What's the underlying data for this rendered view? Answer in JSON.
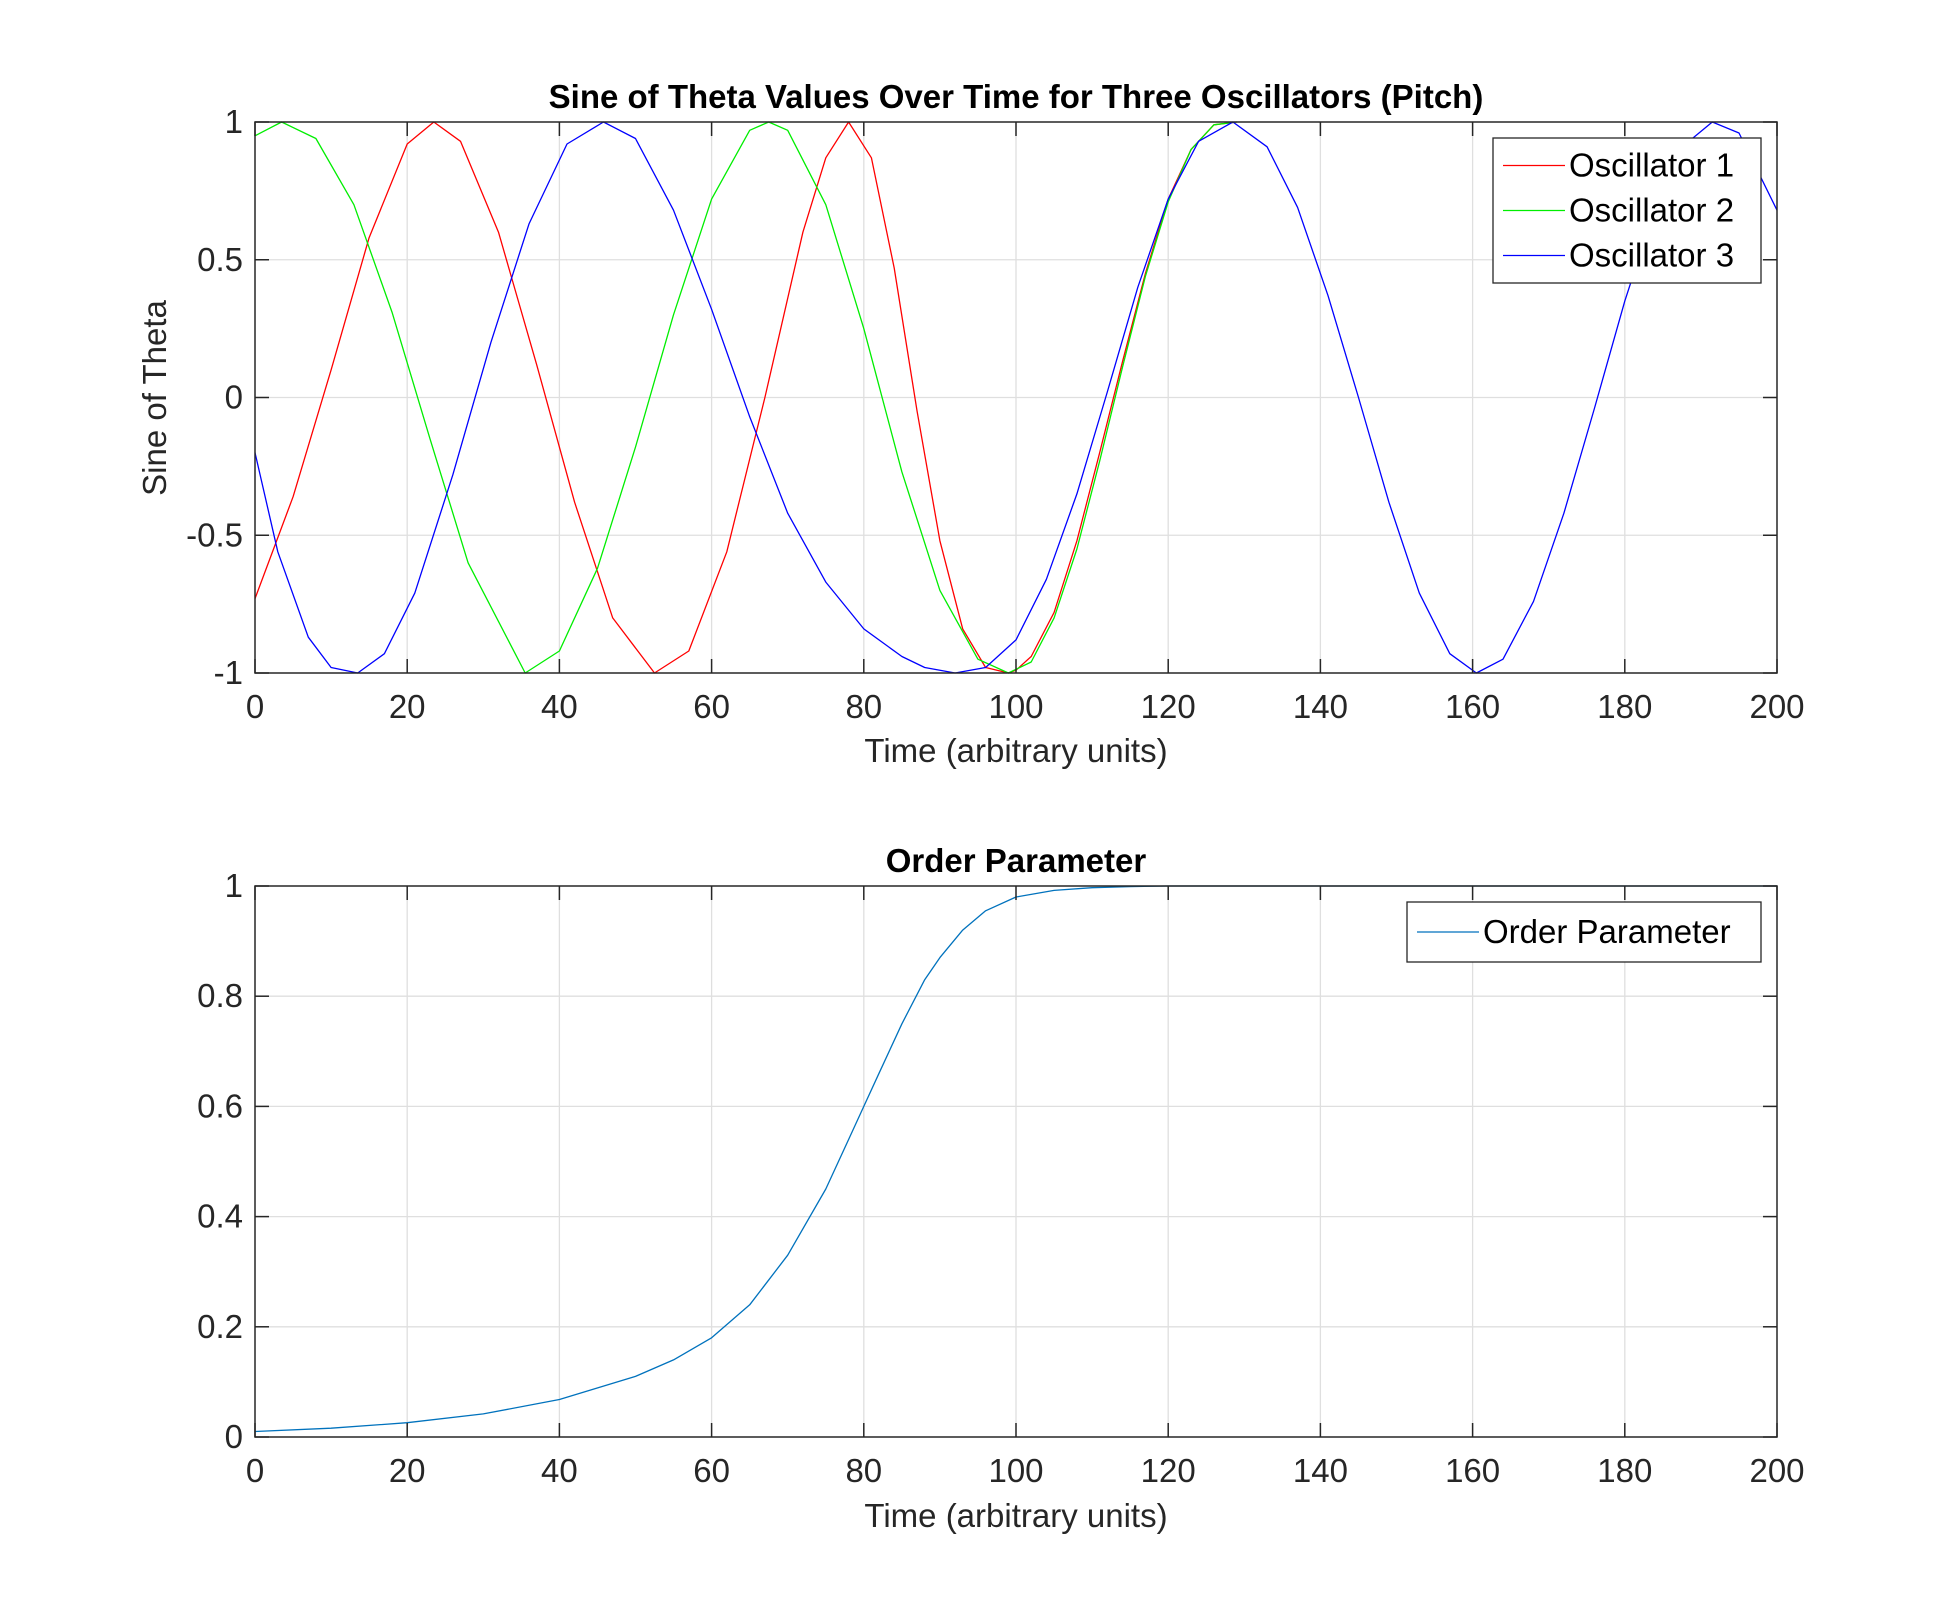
{
  "chart_data": [
    {
      "type": "line",
      "title": "Sine of Theta Values Over Time for Three Oscillators (Pitch)",
      "xlabel": "Time (arbitrary units)",
      "ylabel": "Sine of Theta",
      "xlim": [
        0,
        200
      ],
      "ylim": [
        -1,
        1
      ],
      "xticks": [
        "0",
        "20",
        "40",
        "60",
        "80",
        "100",
        "120",
        "140",
        "160",
        "180",
        "200"
      ],
      "yticks": [
        "-1",
        "-0.5",
        "0",
        "0.5",
        "1"
      ],
      "grid": true,
      "legend_position": "top-right",
      "series": [
        {
          "name": "Oscillator 1",
          "color": "#ff0000",
          "x": [
            0,
            5,
            10,
            15,
            20,
            23.5,
            27,
            32,
            37,
            42,
            47,
            52.5,
            57,
            62,
            67,
            72,
            75,
            78,
            81,
            84,
            87,
            90,
            93,
            96,
            99,
            100,
            102,
            105,
            108,
            111,
            114,
            117,
            120,
            123,
            126,
            129
          ],
          "y": [
            -0.73,
            -0.36,
            0.1,
            0.58,
            0.92,
            1.0,
            0.93,
            0.6,
            0.12,
            -0.38,
            -0.8,
            -1.0,
            -0.92,
            -0.56,
            0.0,
            0.6,
            0.87,
            1.0,
            0.87,
            0.47,
            -0.05,
            -0.52,
            -0.84,
            -0.98,
            -1.0,
            -0.99,
            -0.94,
            -0.78,
            -0.52,
            -0.2,
            0.13,
            0.45,
            0.72,
            0.9,
            0.99,
            1.0
          ]
        },
        {
          "name": "Oscillator 2",
          "color": "#00ee00",
          "x": [
            0,
            3.5,
            8,
            13,
            18,
            23,
            28,
            35.5,
            40,
            45,
            50,
            55,
            60,
            65,
            67.5,
            70,
            75,
            80,
            85,
            90,
            95,
            99,
            102,
            105,
            108,
            111,
            114,
            117,
            120,
            123,
            126,
            129
          ],
          "y": [
            0.95,
            1.0,
            0.94,
            0.7,
            0.31,
            -0.15,
            -0.6,
            -1.0,
            -0.92,
            -0.62,
            -0.18,
            0.3,
            0.72,
            0.97,
            1.0,
            0.97,
            0.7,
            0.25,
            -0.27,
            -0.7,
            -0.95,
            -1.0,
            -0.96,
            -0.8,
            -0.55,
            -0.23,
            0.11,
            0.44,
            0.71,
            0.9,
            0.99,
            1.0
          ]
        },
        {
          "name": "Oscillator 3",
          "color": "#0000ff",
          "x": [
            0,
            3,
            7,
            10,
            13.5,
            17,
            21,
            26,
            31,
            36,
            41,
            45.8,
            50,
            55,
            60,
            65,
            70,
            75,
            80,
            85,
            88,
            92,
            96,
            100,
            104,
            108,
            112,
            116,
            120,
            124,
            128.5,
            133,
            137,
            141,
            145,
            149,
            153,
            157,
            160.5,
            164,
            168,
            172,
            176,
            180,
            184,
            188,
            191.5,
            195,
            200
          ],
          "y": [
            -0.2,
            -0.56,
            -0.87,
            -0.98,
            -1.0,
            -0.93,
            -0.71,
            -0.28,
            0.2,
            0.63,
            0.92,
            1.0,
            0.94,
            0.68,
            0.32,
            -0.07,
            -0.42,
            -0.67,
            -0.84,
            -0.94,
            -0.98,
            -1.0,
            -0.98,
            -0.88,
            -0.66,
            -0.35,
            0.02,
            0.4,
            0.72,
            0.93,
            1.0,
            0.91,
            0.69,
            0.37,
            0.0,
            -0.38,
            -0.71,
            -0.93,
            -1.0,
            -0.95,
            -0.74,
            -0.42,
            -0.04,
            0.35,
            0.69,
            0.92,
            1.0,
            0.96,
            0.68
          ]
        }
      ]
    },
    {
      "type": "line",
      "title": "Order Parameter",
      "xlabel": "Time (arbitrary units)",
      "ylabel": "",
      "xlim": [
        0,
        200
      ],
      "ylim": [
        0,
        1
      ],
      "xticks": [
        "0",
        "20",
        "40",
        "60",
        "80",
        "100",
        "120",
        "140",
        "160",
        "180",
        "200"
      ],
      "yticks": [
        "0",
        "0.2",
        "0.4",
        "0.6",
        "0.8",
        "1"
      ],
      "grid": true,
      "legend_position": "top-right",
      "series": [
        {
          "name": "Order Parameter",
          "color": "#0072bd",
          "x": [
            0,
            10,
            20,
            30,
            40,
            50,
            55,
            60,
            65,
            70,
            75,
            78,
            80,
            82,
            85,
            88,
            90,
            93,
            96,
            100,
            105,
            110,
            115,
            120,
            140,
            160,
            180,
            200
          ],
          "y": [
            0.01,
            0.016,
            0.026,
            0.042,
            0.068,
            0.11,
            0.14,
            0.18,
            0.24,
            0.33,
            0.45,
            0.54,
            0.6,
            0.66,
            0.75,
            0.83,
            0.87,
            0.92,
            0.955,
            0.98,
            0.992,
            0.997,
            0.999,
            1.0,
            1.0,
            1.0,
            1.0,
            1.0
          ]
        }
      ]
    }
  ]
}
